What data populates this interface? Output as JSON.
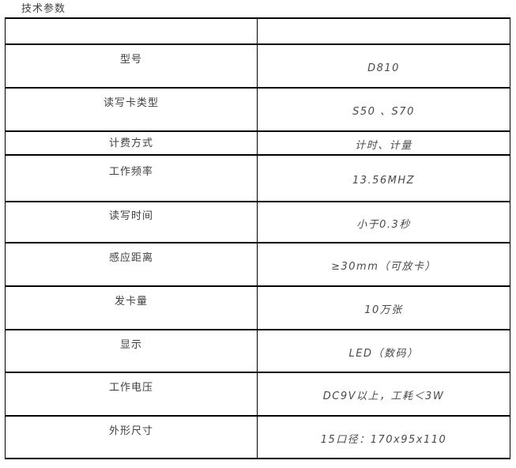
{
  "page": {
    "title": "技术参数"
  },
  "table": {
    "rows": [
      {
        "label": "",
        "value": ""
      },
      {
        "label": "型号",
        "value": "D810"
      },
      {
        "label": "读写卡类型",
        "value": "S50 、S70"
      },
      {
        "label": "计费方式",
        "value": "计时、计量"
      },
      {
        "label": "工作频率",
        "value": "13.56MHZ"
      },
      {
        "label": "读写时间",
        "value": "小于0.3秒"
      },
      {
        "label": "感应距离",
        "value": "≥30mm（可放卡）"
      },
      {
        "label": "发卡量",
        "value": "10万张"
      },
      {
        "label": "显示",
        "value": "LED（数码）"
      },
      {
        "label": "工作电压",
        "value": "DC9V以上，工耗＜3W"
      },
      {
        "label": "外形尺寸",
        "value": "15口径：170x95x110"
      }
    ]
  },
  "colors": {
    "border": "#000000",
    "label_text": "#3f3f3f",
    "value_text": "#4a4a4a",
    "background": "#ffffff"
  }
}
